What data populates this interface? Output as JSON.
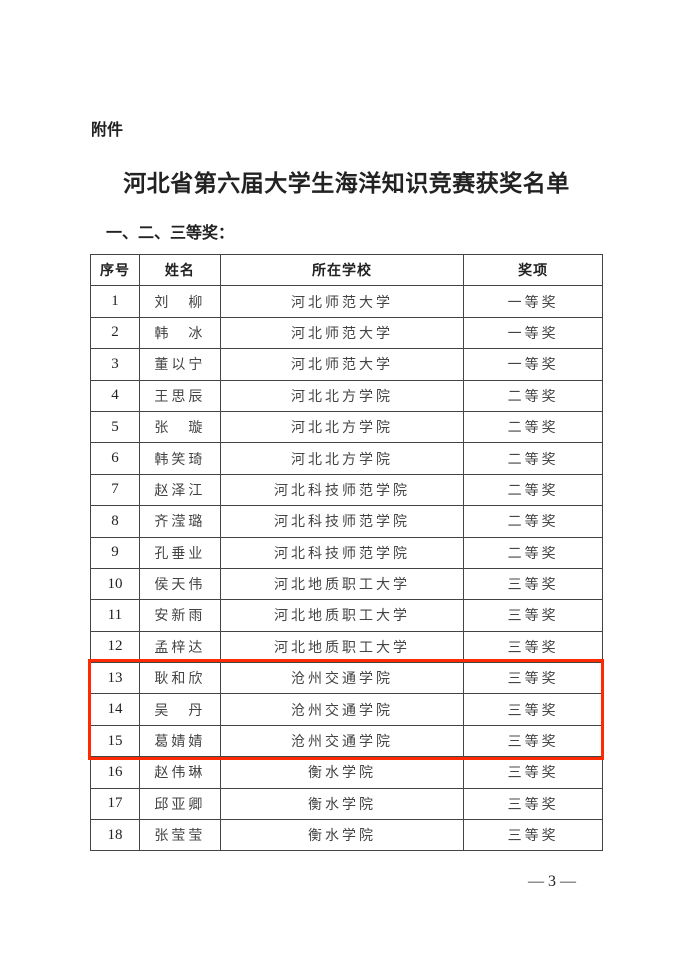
{
  "attachment_label": "附件",
  "title": "河北省第六届大学生海洋知识竞赛获奖名单",
  "section_heading": "一、二、三等奖：",
  "table": {
    "headers": [
      "序号",
      "姓名",
      "所在学校",
      "奖项"
    ],
    "rows": [
      [
        "1",
        "刘　柳",
        "河北师范大学",
        "一等奖"
      ],
      [
        "2",
        "韩　冰",
        "河北师范大学",
        "一等奖"
      ],
      [
        "3",
        "董以宁",
        "河北师范大学",
        "一等奖"
      ],
      [
        "4",
        "王思辰",
        "河北北方学院",
        "二等奖"
      ],
      [
        "5",
        "张　璇",
        "河北北方学院",
        "二等奖"
      ],
      [
        "6",
        "韩笑琦",
        "河北北方学院",
        "二等奖"
      ],
      [
        "7",
        "赵泽江",
        "河北科技师范学院",
        "二等奖"
      ],
      [
        "8",
        "齐滢璐",
        "河北科技师范学院",
        "二等奖"
      ],
      [
        "9",
        "孔垂业",
        "河北科技师范学院",
        "二等奖"
      ],
      [
        "10",
        "侯天伟",
        "河北地质职工大学",
        "三等奖"
      ],
      [
        "11",
        "安新雨",
        "河北地质职工大学",
        "三等奖"
      ],
      [
        "12",
        "孟梓达",
        "河北地质职工大学",
        "三等奖"
      ],
      [
        "13",
        "耿和欣",
        "沧州交通学院",
        "三等奖"
      ],
      [
        "14",
        "吴　丹",
        "沧州交通学院",
        "三等奖"
      ],
      [
        "15",
        "葛婧婧",
        "沧州交通学院",
        "三等奖"
      ],
      [
        "16",
        "赵伟琳",
        "衡水学院",
        "三等奖"
      ],
      [
        "17",
        "邱亚卿",
        "衡水学院",
        "三等奖"
      ],
      [
        "18",
        "张莹莹",
        "衡水学院",
        "三等奖"
      ]
    ]
  },
  "highlight_color": "#ff2a00",
  "page_number": "— 3 —"
}
